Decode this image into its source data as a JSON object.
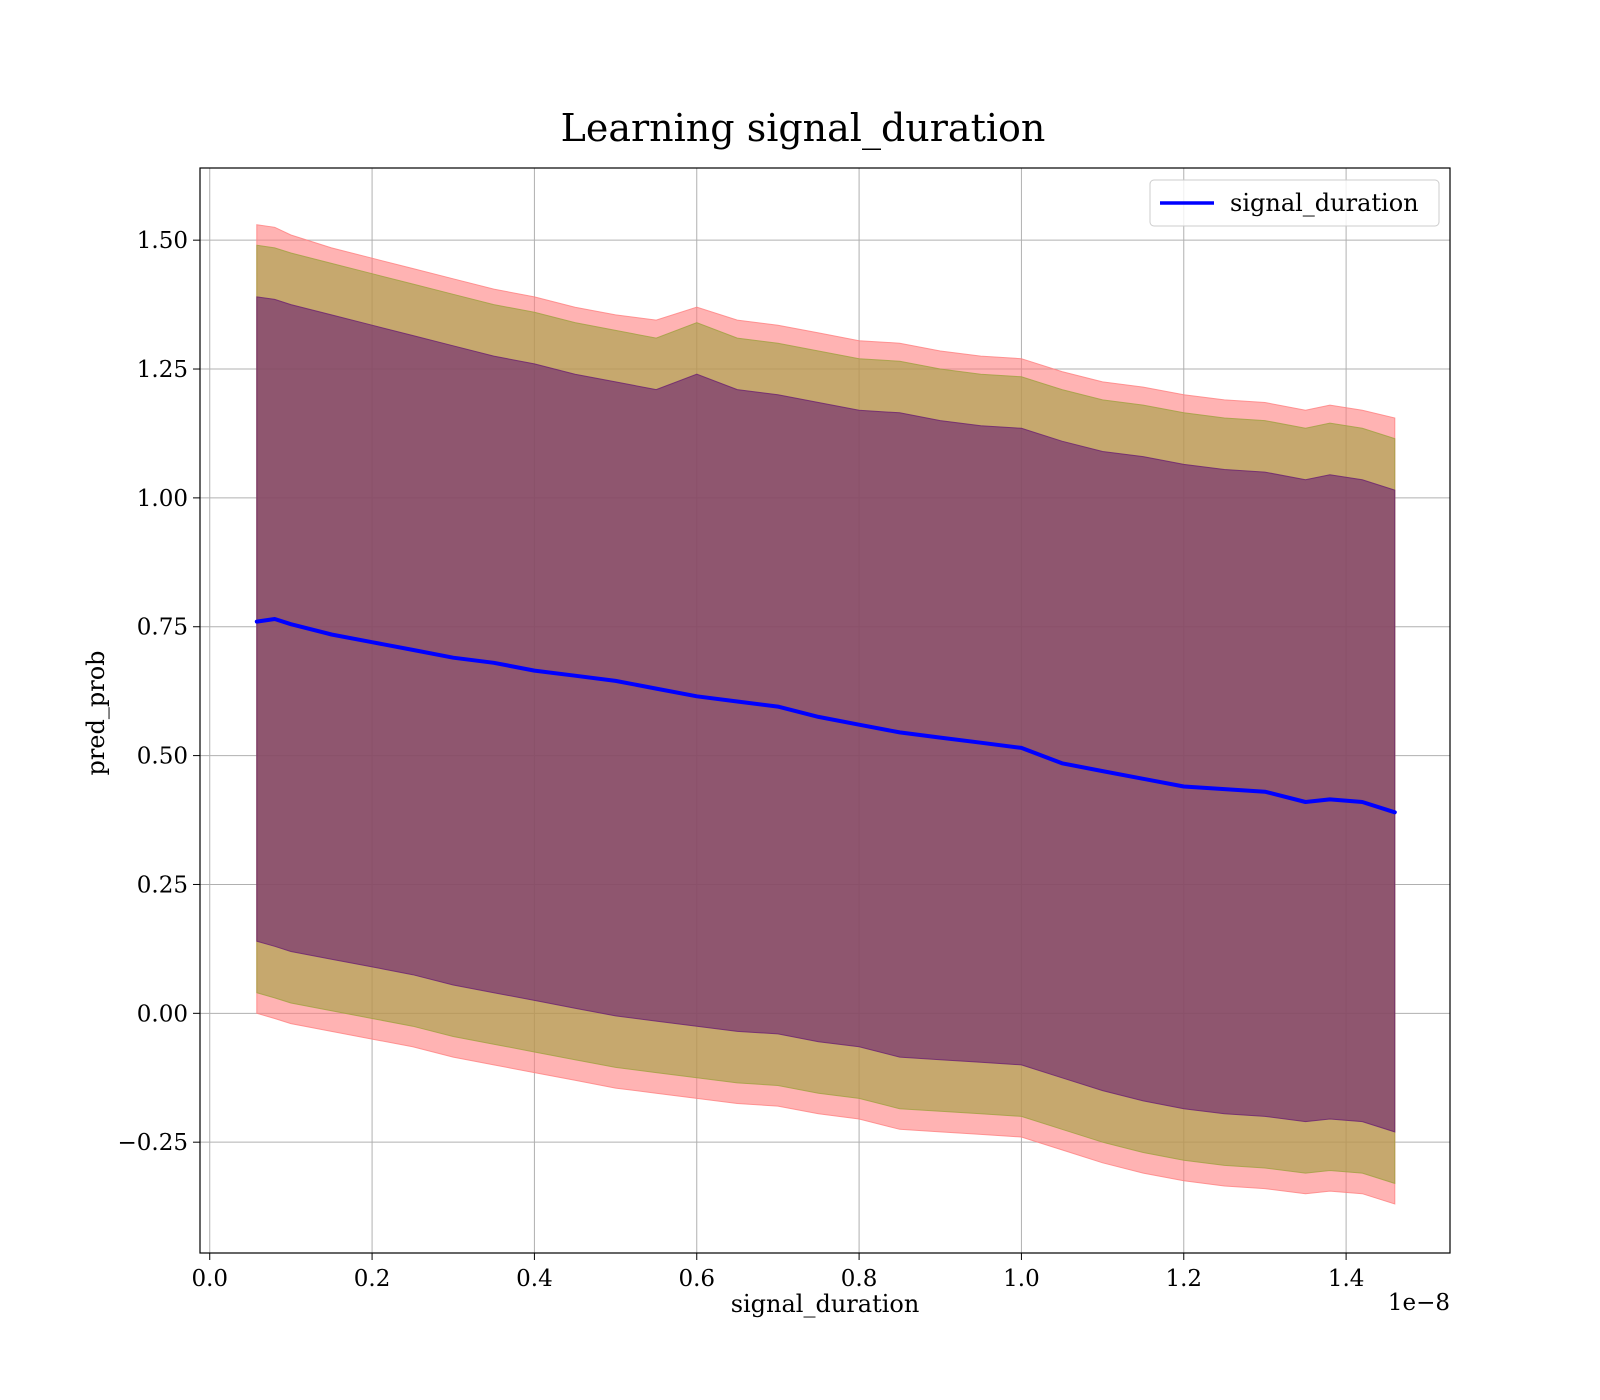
{
  "chart_data": {
    "type": "line",
    "title": "Learning signal_duration",
    "xlabel": "signal_duration",
    "ylabel": "pred_prob",
    "x_offset_label": "1e−8",
    "xlim": [
      -0.012,
      1.528
    ],
    "ylim": [
      -0.465,
      1.64
    ],
    "x_ticks": [
      0.0,
      0.2,
      0.4,
      0.6,
      0.8,
      1.0,
      1.2,
      1.4
    ],
    "x_tick_labels": [
      "0.0",
      "0.2",
      "0.4",
      "0.6",
      "0.8",
      "1.0",
      "1.2",
      "1.4"
    ],
    "y_ticks": [
      -0.25,
      0.0,
      0.25,
      0.5,
      0.75,
      1.0,
      1.25,
      1.5
    ],
    "y_tick_labels": [
      "−0.25",
      "0.00",
      "0.25",
      "0.50",
      "0.75",
      "1.00",
      "1.25",
      "1.50"
    ],
    "grid": true,
    "legend_position": "top-right",
    "x": [
      0.058,
      0.08,
      0.1,
      0.15,
      0.2,
      0.25,
      0.3,
      0.35,
      0.4,
      0.45,
      0.5,
      0.55,
      0.6,
      0.65,
      0.7,
      0.75,
      0.8,
      0.85,
      0.9,
      0.95,
      1.0,
      1.05,
      1.1,
      1.15,
      1.2,
      1.25,
      1.3,
      1.35,
      1.38,
      1.42,
      1.46
    ],
    "series": [
      {
        "name": "signal_duration",
        "color": "#0000ff",
        "values": [
          0.76,
          0.765,
          0.755,
          0.735,
          0.72,
          0.705,
          0.69,
          0.68,
          0.665,
          0.655,
          0.645,
          0.63,
          0.615,
          0.605,
          0.595,
          0.575,
          0.56,
          0.545,
          0.535,
          0.525,
          0.515,
          0.485,
          0.47,
          0.455,
          0.44,
          0.435,
          0.43,
          0.41,
          0.415,
          0.41,
          0.39
        ]
      }
    ],
    "bands": [
      {
        "color": "#ff8080",
        "upper": [
          1.53,
          1.525,
          1.51,
          1.485,
          1.465,
          1.445,
          1.425,
          1.405,
          1.39,
          1.37,
          1.355,
          1.345,
          1.37,
          1.345,
          1.335,
          1.32,
          1.305,
          1.3,
          1.285,
          1.275,
          1.27,
          1.245,
          1.225,
          1.215,
          1.2,
          1.19,
          1.185,
          1.17,
          1.18,
          1.17,
          1.155
        ],
        "lower": [
          0.0,
          -0.01,
          -0.02,
          -0.035,
          -0.05,
          -0.065,
          -0.085,
          -0.1,
          -0.115,
          -0.13,
          -0.145,
          -0.155,
          -0.165,
          -0.175,
          -0.18,
          -0.195,
          -0.205,
          -0.225,
          -0.23,
          -0.235,
          -0.24,
          -0.265,
          -0.29,
          -0.31,
          -0.325,
          -0.335,
          -0.34,
          -0.35,
          -0.345,
          -0.35,
          -0.37
        ]
      },
      {
        "color": "#a0a040",
        "upper": [
          1.49,
          1.485,
          1.475,
          1.455,
          1.435,
          1.415,
          1.395,
          1.375,
          1.36,
          1.34,
          1.325,
          1.31,
          1.34,
          1.31,
          1.3,
          1.285,
          1.27,
          1.265,
          1.25,
          1.24,
          1.235,
          1.21,
          1.19,
          1.18,
          1.165,
          1.155,
          1.15,
          1.135,
          1.145,
          1.135,
          1.115
        ],
        "lower": [
          0.04,
          0.03,
          0.02,
          0.005,
          -0.01,
          -0.025,
          -0.045,
          -0.06,
          -0.075,
          -0.09,
          -0.105,
          -0.115,
          -0.125,
          -0.135,
          -0.14,
          -0.155,
          -0.165,
          -0.185,
          -0.19,
          -0.195,
          -0.2,
          -0.225,
          -0.25,
          -0.27,
          -0.285,
          -0.295,
          -0.3,
          -0.31,
          -0.305,
          -0.31,
          -0.33
        ]
      },
      {
        "color": "#6a2070",
        "upper": [
          1.39,
          1.385,
          1.375,
          1.355,
          1.335,
          1.315,
          1.295,
          1.275,
          1.26,
          1.24,
          1.225,
          1.21,
          1.24,
          1.21,
          1.2,
          1.185,
          1.17,
          1.165,
          1.15,
          1.14,
          1.135,
          1.11,
          1.09,
          1.08,
          1.065,
          1.055,
          1.05,
          1.035,
          1.045,
          1.035,
          1.015
        ],
        "lower": [
          0.14,
          0.13,
          0.12,
          0.105,
          0.09,
          0.075,
          0.055,
          0.04,
          0.025,
          0.01,
          -0.005,
          -0.015,
          -0.025,
          -0.035,
          -0.04,
          -0.055,
          -0.065,
          -0.085,
          -0.09,
          -0.095,
          -0.1,
          -0.125,
          -0.15,
          -0.17,
          -0.185,
          -0.195,
          -0.2,
          -0.21,
          -0.205,
          -0.21,
          -0.23
        ]
      }
    ]
  }
}
